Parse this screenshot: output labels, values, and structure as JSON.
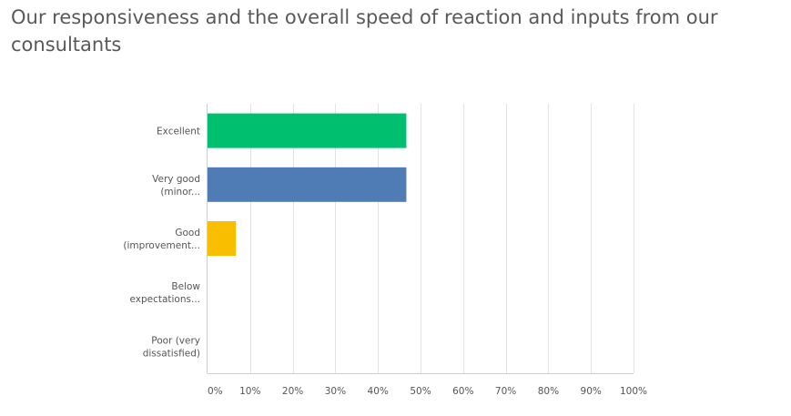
{
  "chart_data": {
    "type": "bar",
    "orientation": "horizontal",
    "title": "Our responsiveness and the overall speed of reaction and inputs from our consultants",
    "categories": [
      [
        "Excellent"
      ],
      [
        "Very good",
        "(minor..."
      ],
      [
        "Good",
        "(improvement..."
      ],
      [
        "Below",
        "expectations..."
      ],
      [
        "Poor (very",
        "dissatisfied)"
      ]
    ],
    "values": [
      46.67,
      46.67,
      6.67,
      0,
      0
    ],
    "colors": [
      "#00bf6f",
      "#507cb6",
      "#f9be00",
      "#6bc8cd",
      "#d25f90"
    ],
    "xlim": [
      0,
      100
    ],
    "xticks": [
      0,
      10,
      20,
      30,
      40,
      50,
      60,
      70,
      80,
      90,
      100
    ],
    "xtick_labels": [
      "0%",
      "10%",
      "20%",
      "30%",
      "40%",
      "50%",
      "60%",
      "70%",
      "80%",
      "90%",
      "100%"
    ],
    "xlabel": "",
    "ylabel": "",
    "grid": "vertical",
    "legend": "none"
  }
}
